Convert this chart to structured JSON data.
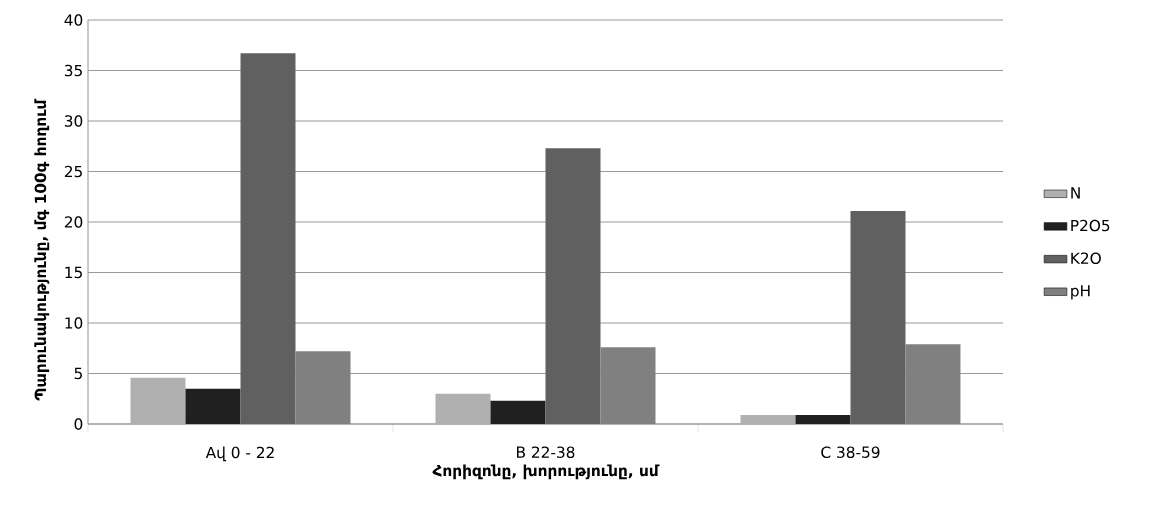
{
  "chart_data": {
    "type": "bar",
    "xlabel": "Հորիզոնը, խորությունը, սմ",
    "ylabel": "Պարունակությունը,  մգ 100գ հողում",
    "categories": [
      "Aվ  0 - 22",
      "B   22-38",
      "C 38-59"
    ],
    "series": [
      {
        "name": "N",
        "color": "#b0b0b0",
        "values": [
          4.6,
          3.0,
          0.9
        ]
      },
      {
        "name": "P2O5",
        "color": "#202020",
        "values": [
          3.5,
          2.3,
          0.9
        ]
      },
      {
        "name": "K2O",
        "color": "#606060",
        "values": [
          36.7,
          27.3,
          21.1
        ]
      },
      {
        "name": "pH",
        "color": "#808080",
        "values": [
          7.2,
          7.6,
          7.9
        ]
      }
    ],
    "ylim": [
      0,
      40
    ],
    "yticks": [
      0,
      5,
      10,
      15,
      20,
      25,
      30,
      35,
      40
    ],
    "grid": "y",
    "legend": "right"
  }
}
